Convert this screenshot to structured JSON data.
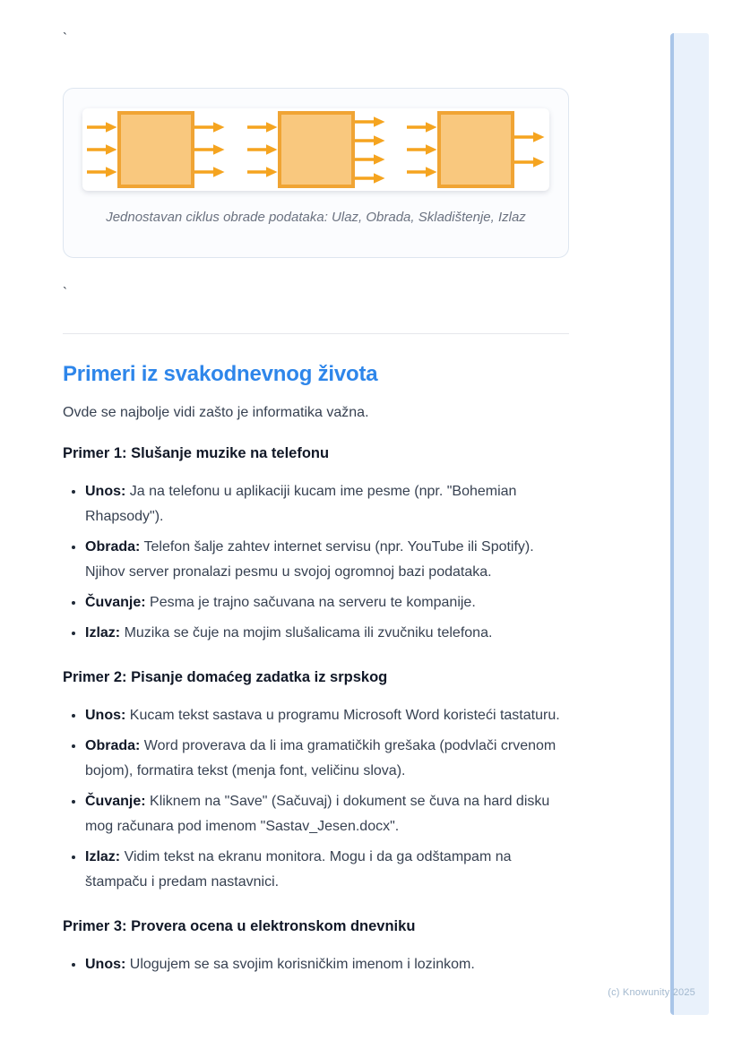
{
  "page": {
    "stray_char_top": "`",
    "stray_char_mid": "`",
    "footer": "(c) Knowunity 2025"
  },
  "figure": {
    "caption": "Jednostavan ciklus obrade podataka: Ulaz, Obrada, Skladištenje, Izlaz",
    "colors": {
      "box_fill": "#F9C87E",
      "box_border": "#F0A434",
      "arrow": "#F5A41F"
    },
    "boxes": [
      {
        "name": "ulaz",
        "arrows_in": 3,
        "arrows_out": 3
      },
      {
        "name": "obrada",
        "arrows_in": 3,
        "arrows_out": 4
      },
      {
        "name": "skladistenje-izlaz",
        "arrows_in": 3,
        "arrows_out": 2
      }
    ]
  },
  "section": {
    "heading": "Primeri iz svakodnevnog života",
    "heading_color": "#2E86EA",
    "intro": "Ovde se najbolje vidi zašto je informatika važna.",
    "examples": [
      {
        "title": "Primer 1: Slušanje muzike na telefonu",
        "items": [
          {
            "label": "Unos:",
            "text": "Ja na telefonu u aplikaciji kucam ime pesme (npr. \"Bohemian Rhapsody\")."
          },
          {
            "label": "Obrada:",
            "text": "Telefon šalje zahtev internet servisu (npr. YouTube ili Spotify). Njihov server pronalazi pesmu u svojoj ogromnoj bazi podataka."
          },
          {
            "label": "Čuvanje:",
            "text": "Pesma je trajno sačuvana na serveru te kompanije."
          },
          {
            "label": "Izlaz:",
            "text": "Muzika se čuje na mojim slušalicama ili zvučniku telefona."
          }
        ]
      },
      {
        "title": "Primer 2: Pisanje domaćeg zadatka iz srpskog",
        "items": [
          {
            "label": "Unos:",
            "text": "Kucam tekst sastava u programu Microsoft Word koristeći tastaturu."
          },
          {
            "label": "Obrada:",
            "text": "Word proverava da li ima gramatičkih grešaka (podvlači crvenom bojom), formatira tekst (menja font, veličinu slova)."
          },
          {
            "label": "Čuvanje:",
            "text": "Kliknem na \"Save\" (Sačuvaj) i dokument se čuva na hard disku mog računara pod imenom \"Sastav_Jesen.docx\"."
          },
          {
            "label": "Izlaz:",
            "text": "Vidim tekst na ekranu monitora. Mogu i da ga odštampam na štampaču i predam nastavnici."
          }
        ]
      },
      {
        "title": "Primer 3: Provera ocena u elektronskom dnevniku",
        "items": [
          {
            "label": "Unos:",
            "text": "Ulogujem se sa svojim korisničkim imenom i lozinkom."
          }
        ]
      }
    ]
  }
}
